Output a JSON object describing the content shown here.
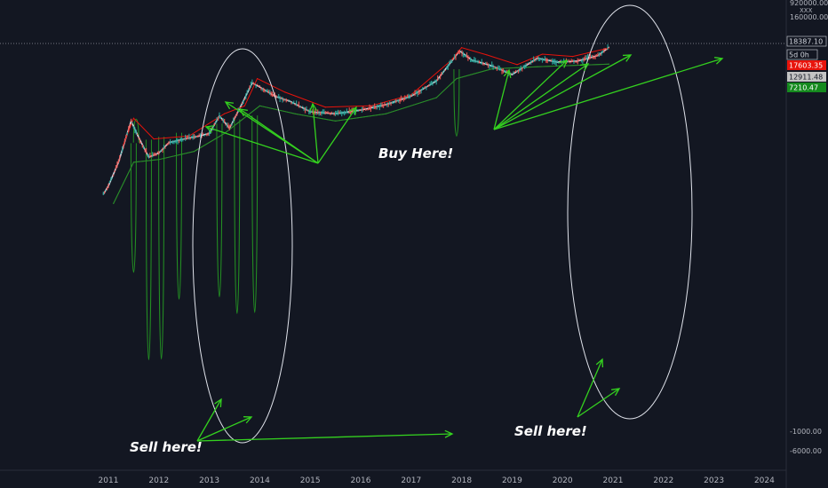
{
  "chart_data": {
    "type": "line",
    "title": "",
    "xlabel": "",
    "ylabel": "",
    "grid": false,
    "x_ticks": [
      "2011",
      "2012",
      "2013",
      "2014",
      "2015",
      "2016",
      "2017",
      "2018",
      "2019",
      "2020",
      "2021",
      "2022",
      "2023",
      "2024"
    ],
    "y_ticks": [
      "920000.00",
      "160000.00",
      "-1000.00",
      "-6000.00"
    ],
    "axis_header": "XXX",
    "price_labels": [
      {
        "id": "current",
        "value": "18387.10",
        "bg": "#131722",
        "fg": "#d1d4dc",
        "outline": "#d1d4dc"
      },
      {
        "id": "countdown",
        "value": "5d 0h",
        "bg": "#131722",
        "fg": "#d1d4dc",
        "outline": "#d1d4dc"
      },
      {
        "id": "red",
        "value": "17603.35",
        "bg": "#e8130b",
        "fg": "#ffffff"
      },
      {
        "id": "gray",
        "value": "12911.48",
        "bg": "#c4c4c4",
        "fg": "#131722"
      },
      {
        "id": "green",
        "value": "7210.47",
        "bg": "#158a1e",
        "fg": "#ffffff"
      }
    ],
    "series": [
      {
        "color": "#d1d4dc",
        "values": [
          [
            2010.9,
            5
          ],
          [
            2011.0,
            8
          ],
          [
            2011.2,
            30
          ],
          [
            2011.45,
            300
          ],
          [
            2011.6,
            120
          ],
          [
            2011.8,
            40
          ],
          [
            2012.0,
            50
          ],
          [
            2012.2,
            90
          ],
          [
            2012.5,
            110
          ],
          [
            2012.8,
            130
          ],
          [
            2013.0,
            150
          ],
          [
            2013.2,
            400
          ],
          [
            2013.4,
            200
          ],
          [
            2013.6,
            600
          ],
          [
            2013.85,
            2500
          ],
          [
            2014.0,
            2000
          ],
          [
            2014.3,
            1200
          ],
          [
            2014.6,
            900
          ],
          [
            2015.0,
            500
          ],
          [
            2015.5,
            450
          ],
          [
            2016.0,
            550
          ],
          [
            2016.5,
            750
          ],
          [
            2017.0,
            1200
          ],
          [
            2017.5,
            2800
          ],
          [
            2017.96,
            15000
          ],
          [
            2018.2,
            9000
          ],
          [
            2018.6,
            6500
          ],
          [
            2019.0,
            4000
          ],
          [
            2019.5,
            10000
          ],
          [
            2019.9,
            8000
          ],
          [
            2020.3,
            8500
          ],
          [
            2020.7,
            11500
          ],
          [
            2020.92,
            18387
          ]
        ]
      },
      {
        "color": "#e8130b",
        "values": [
          [
            2011.3,
            80
          ],
          [
            2011.5,
            350
          ],
          [
            2011.9,
            110
          ],
          [
            2012.6,
            130
          ],
          [
            2013.3,
            450
          ],
          [
            2013.7,
            700
          ],
          [
            2013.95,
            3200
          ],
          [
            2014.5,
            1500
          ],
          [
            2015.3,
            650
          ],
          [
            2016.2,
            700
          ],
          [
            2017.0,
            1300
          ],
          [
            2017.8,
            9000
          ],
          [
            2018.0,
            18000
          ],
          [
            2018.5,
            12000
          ],
          [
            2019.1,
            7000
          ],
          [
            2019.6,
            12500
          ],
          [
            2020.2,
            11000
          ],
          [
            2020.92,
            17603
          ]
        ]
      },
      {
        "color": "#2a8a2a",
        "values": [
          [
            2011.1,
            3
          ],
          [
            2011.5,
            30
          ],
          [
            2012.0,
            35
          ],
          [
            2012.7,
            55
          ],
          [
            2013.3,
            150
          ],
          [
            2014.0,
            700
          ],
          [
            2014.7,
            450
          ],
          [
            2015.5,
            300
          ],
          [
            2016.5,
            450
          ],
          [
            2017.5,
            1100
          ],
          [
            2017.9,
            3200
          ],
          [
            2018.6,
            5500
          ],
          [
            2019.5,
            6200
          ],
          [
            2020.92,
            7210
          ]
        ]
      }
    ],
    "oscillator": {
      "color": "#238f23",
      "values": [
        [
          2011.5,
          -3000
        ],
        [
          2011.55,
          -400
        ],
        [
          2011.6,
          0
        ],
        [
          2011.8,
          -4500
        ],
        [
          2011.85,
          0
        ],
        [
          2012.05,
          -4500
        ],
        [
          2012.1,
          0
        ],
        [
          2012.4,
          -3500
        ],
        [
          2012.5,
          0
        ],
        [
          2013.2,
          -3500
        ],
        [
          2013.3,
          0
        ],
        [
          2013.55,
          -3800
        ],
        [
          2013.6,
          0
        ],
        [
          2013.9,
          -3800
        ],
        [
          2013.95,
          0
        ],
        [
          2017.9,
          -1000
        ],
        [
          2017.95,
          0
        ]
      ]
    }
  },
  "annotations": {
    "buy": "Buy Here!",
    "sell_left": "Sell here!",
    "sell_right": "Sell here!"
  }
}
